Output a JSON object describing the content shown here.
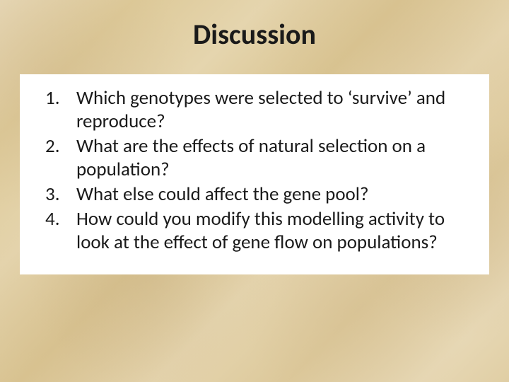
{
  "slide": {
    "title": "Discussion",
    "questions": [
      "Which genotypes were selected to ‘survive’ and reproduce?",
      "What are the effects of natural selection on a population?",
      "What else could affect the gene pool?",
      "How could you modify this modelling activity to look at the effect of gene flow on populations?"
    ],
    "styling": {
      "background_colors": [
        "#e8d9b8",
        "#ddc998",
        "#e5d5ae",
        "#d9c491",
        "#e6d6b0",
        "#dcc89a",
        "#e7d8b5",
        "#e0cea4"
      ],
      "content_background": "#ffffff",
      "text_color": "#1a1a1a",
      "title_fontsize": 40,
      "title_fontweight": "bold",
      "body_fontsize": 27,
      "font_family": "Calibri",
      "slide_width": 720,
      "slide_height": 540
    }
  }
}
